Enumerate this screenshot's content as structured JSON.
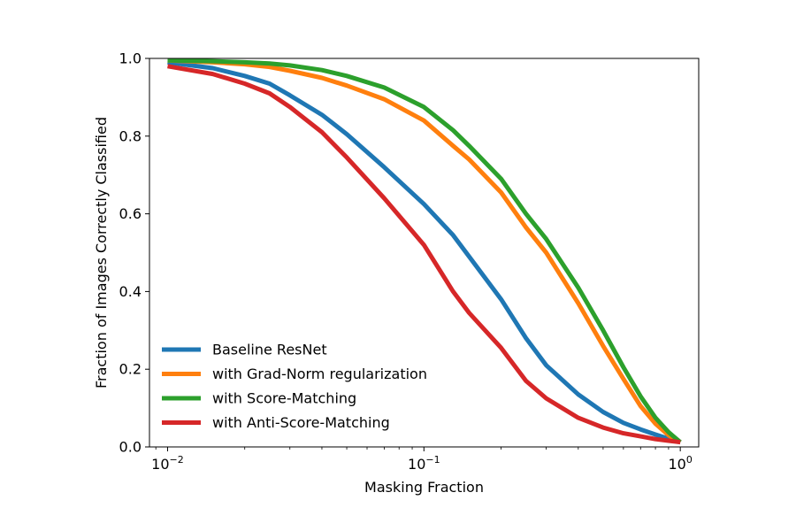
{
  "chart_data": {
    "type": "line",
    "xlabel": "Masking Fraction",
    "ylabel": "Fraction of Images Correctly Classified",
    "xscale": "log",
    "xlim": [
      0.0085,
      1.18
    ],
    "ylim": [
      0.0,
      1.0
    ],
    "x_ticks": [
      {
        "value": 0.01,
        "base": "10",
        "exp": "−2"
      },
      {
        "value": 0.1,
        "base": "10",
        "exp": "−1"
      },
      {
        "value": 1,
        "base": "10",
        "exp": "0"
      }
    ],
    "y_ticks": [
      "0.0",
      "0.2",
      "0.4",
      "0.6",
      "0.8",
      "1.0"
    ],
    "grid": false,
    "legend_position": "lower-left",
    "x": [
      0.01,
      0.015,
      0.02,
      0.025,
      0.03,
      0.04,
      0.05,
      0.07,
      0.1,
      0.13,
      0.15,
      0.2,
      0.25,
      0.3,
      0.4,
      0.5,
      0.6,
      0.7,
      0.8,
      0.9,
      1.0
    ],
    "series": [
      {
        "name": "Baseline ResNet",
        "color": "#1f77b4",
        "values": [
          0.99,
          0.975,
          0.955,
          0.935,
          0.905,
          0.855,
          0.805,
          0.72,
          0.625,
          0.545,
          0.49,
          0.38,
          0.28,
          0.21,
          0.135,
          0.09,
          0.062,
          0.045,
          0.032,
          0.021,
          0.012
        ]
      },
      {
        "name": "with Grad-Norm regularization",
        "color": "#ff7f0e",
        "values": [
          0.995,
          0.99,
          0.985,
          0.978,
          0.968,
          0.95,
          0.93,
          0.895,
          0.84,
          0.775,
          0.74,
          0.655,
          0.565,
          0.5,
          0.37,
          0.26,
          0.175,
          0.105,
          0.06,
          0.03,
          0.012
        ]
      },
      {
        "name": "with Score-Matching",
        "color": "#2ca02c",
        "values": [
          0.995,
          0.993,
          0.99,
          0.987,
          0.982,
          0.97,
          0.955,
          0.925,
          0.875,
          0.815,
          0.775,
          0.69,
          0.6,
          0.535,
          0.41,
          0.3,
          0.205,
          0.13,
          0.075,
          0.038,
          0.012
        ]
      },
      {
        "name": "with Anti-Score-Matching",
        "color": "#d62728",
        "values": [
          0.98,
          0.96,
          0.935,
          0.91,
          0.875,
          0.81,
          0.745,
          0.64,
          0.52,
          0.4,
          0.345,
          0.255,
          0.17,
          0.125,
          0.075,
          0.05,
          0.035,
          0.027,
          0.02,
          0.016,
          0.012
        ]
      }
    ]
  }
}
